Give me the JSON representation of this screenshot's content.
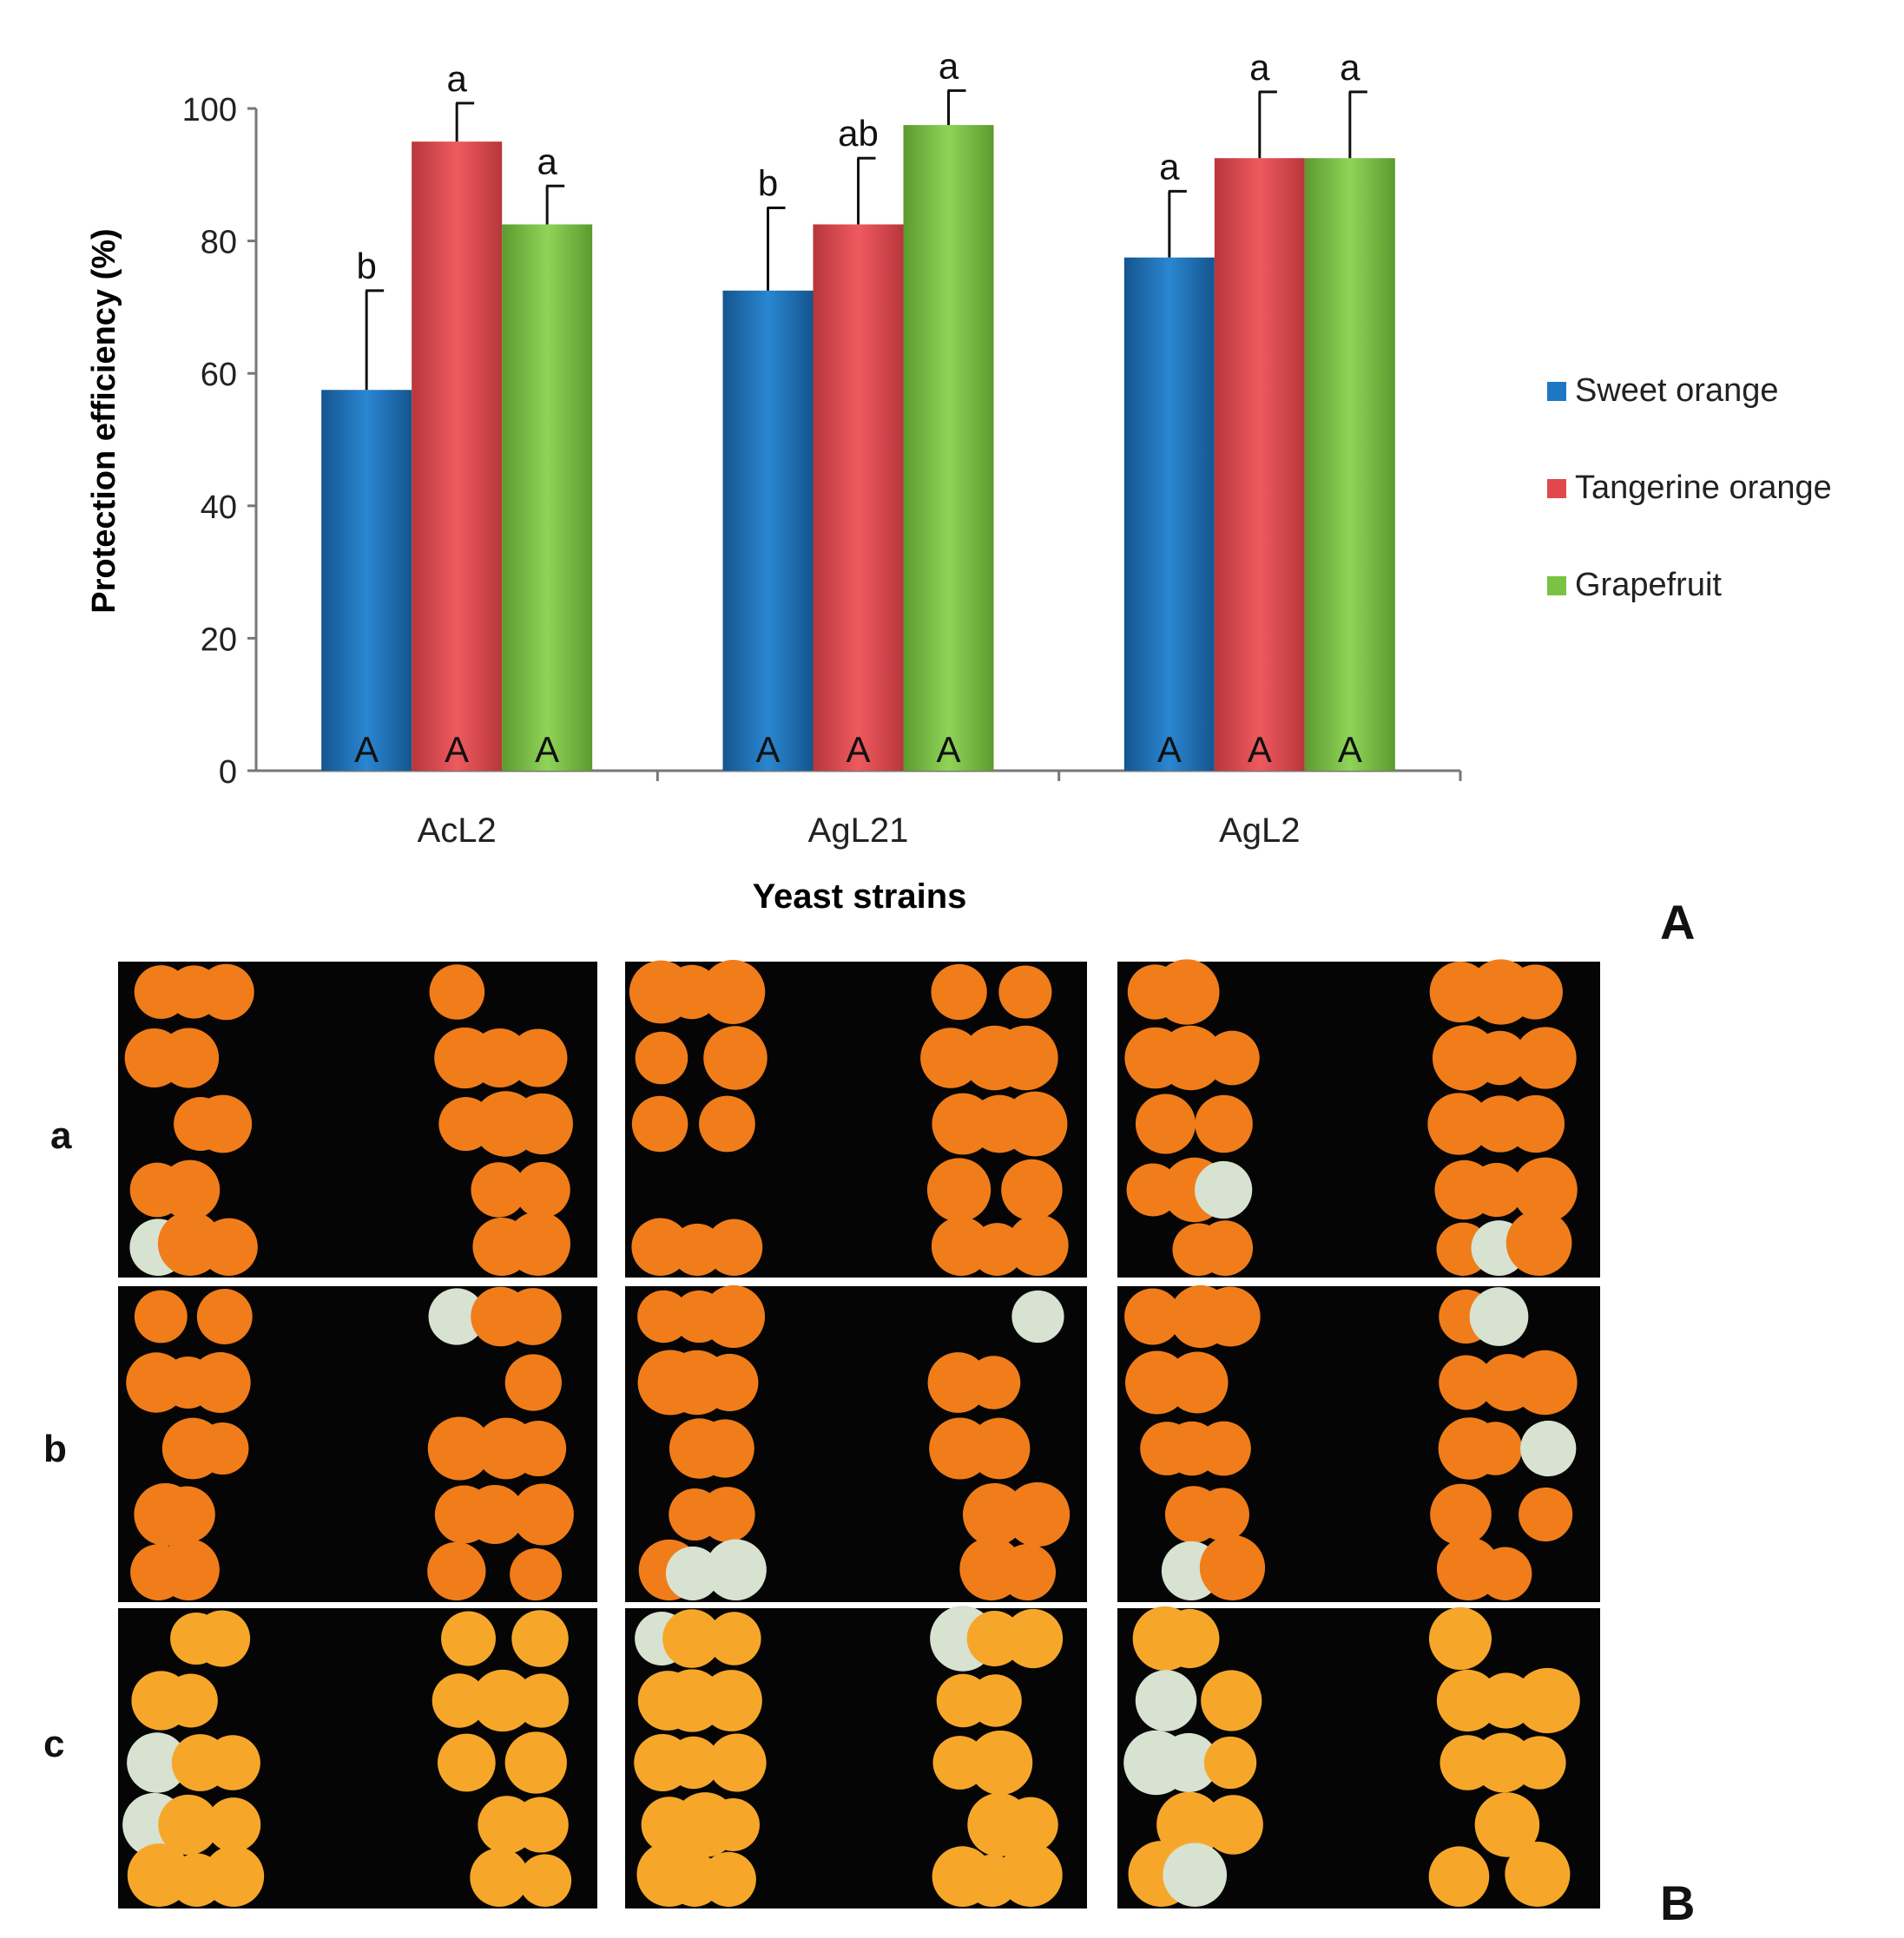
{
  "chart_data": {
    "type": "bar",
    "categories": [
      "AcL2",
      "AgL21",
      "AgL2"
    ],
    "series": [
      {
        "name": "Sweet orange",
        "color": "#1f77c4",
        "values": [
          57.5,
          72.5,
          77.5
        ],
        "errors": [
          15,
          12.5,
          10
        ],
        "top_labels": [
          "b",
          "b",
          "a"
        ],
        "bottom_labels": [
          "A",
          "A",
          "A"
        ]
      },
      {
        "name": "Tangerine orange",
        "color": "#e0484e",
        "values": [
          95,
          82.5,
          92.5
        ],
        "errors": [
          5.8,
          10,
          10
        ],
        "top_labels": [
          "a",
          "ab",
          "a"
        ],
        "bottom_labels": [
          "A",
          "A",
          "A"
        ]
      },
      {
        "name": "Grapefruit",
        "color": "#7bc143",
        "values": [
          82.5,
          97.5,
          92.5
        ],
        "errors": [
          5.8,
          5.2,
          10
        ],
        "top_labels": [
          "a",
          "a",
          "a"
        ],
        "bottom_labels": [
          "A",
          "A",
          "A"
        ]
      }
    ],
    "ylim": [
      0,
      100
    ],
    "yticks": [
      0,
      20,
      40,
      60,
      80,
      100
    ],
    "ylabel": "Protection efficiency (%)",
    "xlabel": "Yeast strains",
    "grid": false,
    "legend": "right"
  },
  "panel_labels": {
    "chart": "A",
    "photos": "B"
  },
  "row_labels": [
    "a",
    "b",
    "c"
  ]
}
